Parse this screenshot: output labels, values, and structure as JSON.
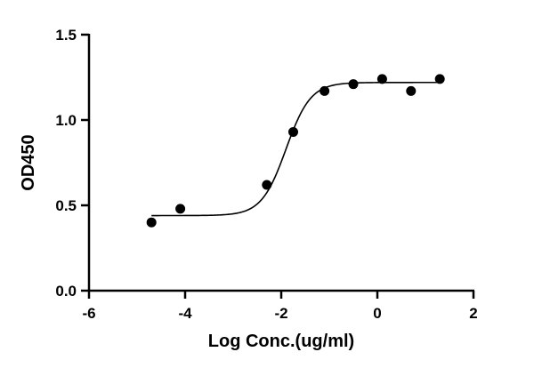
{
  "chart_data": {
    "type": "scatter",
    "title": "",
    "xlabel": "Log Conc.(ug/ml)",
    "ylabel": "OD450",
    "xlim": [
      -6,
      2
    ],
    "ylim": [
      0,
      1.5
    ],
    "x_ticks": [
      -6,
      -4,
      -2,
      0,
      2
    ],
    "x_tick_labels": [
      "-6",
      "-4",
      "-2",
      "0",
      "2"
    ],
    "y_ticks": [
      0,
      0.5,
      1.0,
      1.5
    ],
    "y_tick_labels": [
      "0.0",
      "0.5",
      "1.0",
      "1.5"
    ],
    "grid": false,
    "legend": "none",
    "series": [
      {
        "x": [
          -4.7,
          -4.1,
          -2.3,
          -1.75,
          -1.1,
          -0.5,
          0.1,
          0.7,
          1.3
        ],
        "y": [
          0.4,
          0.48,
          0.62,
          0.93,
          1.17,
          1.21,
          1.24,
          1.17,
          1.24
        ]
      }
    ],
    "fit": {
      "type": "4PL",
      "bottom": 0.44,
      "top": 1.22,
      "logEC50": -1.9,
      "hillslope": 1.7
    },
    "colors": {
      "points": "#000000",
      "curve": "#000000"
    }
  }
}
